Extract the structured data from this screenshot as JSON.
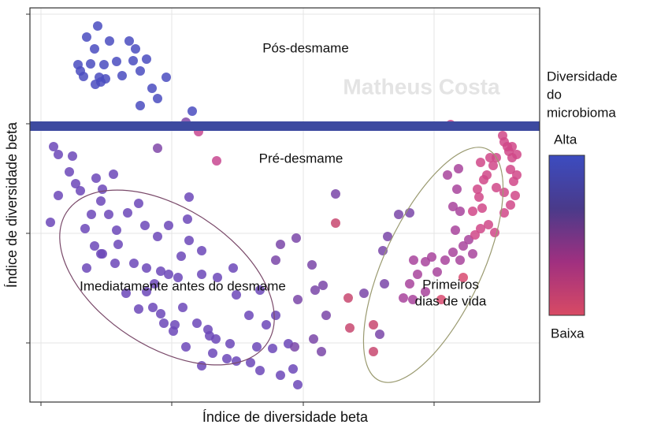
{
  "chart_data": {
    "type": "scatter",
    "xlabel": "Índice de diversidade beta",
    "ylabel": "Índice de diversidade beta",
    "xlim": [
      38,
      685
    ],
    "ylim": [
      0,
      500
    ],
    "xticks": [
      52,
      218,
      385,
      551
    ],
    "yticks": [
      75,
      214,
      353,
      492
    ],
    "grid": true,
    "hline": {
      "value": 350,
      "color": "#3d4aa0"
    },
    "annotations": [
      "Pós-desmame",
      "Pré-desmame",
      "Imediatamente antes do desmame",
      [
        "Primeiros",
        "dias de vida"
      ]
    ],
    "watermark": "Matheus Costa",
    "colorbar": {
      "title": [
        "Diversidade",
        "do",
        "microbioma"
      ],
      "high": "Alta",
      "low": "Baixa",
      "colors": [
        "#3c4cc0",
        "#4a3a8a",
        "#a03080",
        "#d84a64"
      ]
    },
    "series": [
      {
        "color": "#4a4cc0",
        "x": [
          124,
          110,
          139,
          164,
          120,
          99,
          115,
          132,
          148,
          169,
          186,
          102,
          126,
          121,
          134,
          155,
          178,
          211,
          193,
          200,
          178,
          244,
          106,
          172,
          128
        ],
        "y": [
          477,
          463,
          458,
          458,
          448,
          428,
          429,
          428,
          432,
          433,
          435,
          420,
          412,
          403,
          410,
          414,
          420,
          412,
          398,
          385,
          376,
          369,
          413,
          448,
          406
        ]
      },
      {
        "color": "#8048a8",
        "x": [
          236,
          200
        ],
        "y": [
          355,
          322
        ]
      },
      {
        "color": "#c84890",
        "x": [
          275,
          252
        ],
        "y": [
          306,
          343
        ]
      },
      {
        "color": "#6c48b8",
        "x": [
          68,
          74,
          92,
          88,
          96,
          74,
          64,
          102,
          122,
          130,
          144,
          128,
          138,
          116,
          108,
          148,
          162,
          176,
          184,
          214,
          238,
          200,
          240,
          256,
          120,
          130,
          146,
          170,
          186,
          204,
          226,
          214,
          256,
          276,
          296,
          300,
          330,
          186,
          194,
          208,
          232,
          222,
          250,
          264,
          274,
          292,
          270,
          300,
          318,
          330,
          326,
          338,
          350,
          346,
          366,
          372,
          356,
          378,
          256,
          236,
          316,
          196,
          110,
          128,
          230,
          150,
          240,
          220,
          288,
          160,
          176,
          204,
          266
        ],
        "y": [
          324,
          314,
          312,
          292,
          277,
          262,
          228,
          268,
          284,
          270,
          289,
          255,
          238,
          238,
          220,
          218,
          240,
          252,
          224,
          224,
          232,
          210,
          205,
          192,
          198,
          188,
          176,
          176,
          170,
          166,
          158,
          162,
          162,
          158,
          170,
          136,
          142,
          140,
          120,
          100,
          120,
          98,
          100,
          92,
          80,
          74,
          62,
          52,
          50,
          40,
          70,
          98,
          110,
          68,
          74,
          42,
          34,
          22,
          46,
          70,
          110,
          150,
          170,
          188,
          185,
          200,
          260,
          90,
          55,
          138,
          118,
          112,
          84
        ]
      },
      {
        "color": "#7a46a8",
        "x": [
          356,
          376,
          350,
          396,
          378,
          400,
          410,
          374,
          398,
          408,
          414,
          426,
          482,
          462,
          488,
          486,
          492,
          506,
          520
        ],
        "y": [
          200,
          208,
          180,
          174,
          130,
          142,
          148,
          70,
          80,
          64,
          110,
          264,
          86,
          138,
          150,
          192,
          210,
          238,
          240
        ]
      },
      {
        "color": "#c84870",
        "x": [
          426,
          442,
          474,
          474,
          444
        ],
        "y": [
          227,
          132,
          98,
          64,
          94
        ]
      },
      {
        "color": "#a8449c",
        "x": [
          525,
          530,
          540,
          548,
          520,
          512,
          524,
          540,
          555,
          565,
          575,
          584,
          588,
          595,
          578,
          575,
          584,
          580,
          582,
          568,
          600
        ],
        "y": [
          180,
          162,
          178,
          184,
          150,
          132,
          130,
          140,
          165,
          180,
          190,
          180,
          198,
          206,
          218,
          248,
          242,
          270,
          296,
          288,
          188
        ]
      },
      {
        "color": "#d04888",
        "x": [
          603,
          610,
          606,
          600,
          608,
          612,
          614,
          618,
          626,
          630,
          620,
          628,
          640,
          648,
          654,
          640,
          652,
          648,
          656,
          650,
          646,
          640,
          644,
          638,
          650,
          656,
          610,
          622,
          630,
          572,
          590
        ],
        "y": [
          212,
          220,
          270,
          242,
          260,
          246,
          282,
          288,
          300,
          272,
          225,
          215,
          240,
          250,
          262,
          266,
          280,
          295,
          288,
          310,
          318,
          330,
          324,
          338,
          324,
          314,
          304,
          310,
          310,
          352,
          350
        ]
      },
      {
        "color": "#d84a70",
        "x": [
          588,
          560
        ],
        "y": [
          158,
          130
        ]
      }
    ]
  }
}
